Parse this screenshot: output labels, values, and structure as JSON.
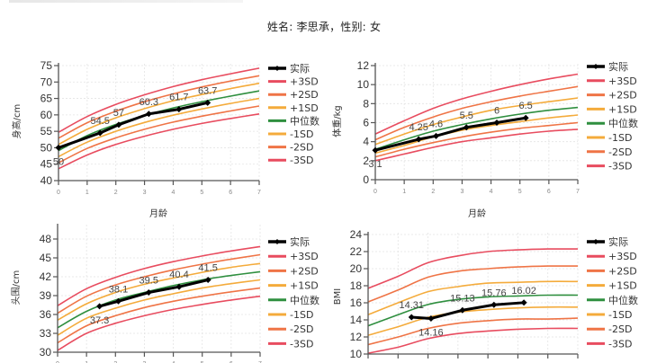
{
  "header": {
    "title": "姓名: 李思承，性别: 女"
  },
  "legend": {
    "items": [
      "实际",
      "+3SD",
      "+2SD",
      "+1SD",
      "中位数",
      "-1SD",
      "-2SD",
      "-3SD"
    ]
  },
  "colors": {
    "实际": "#000000",
    "+3SD": "#e84c5f",
    "+2SD": "#ef7446",
    "+1SD": "#f4ab3b",
    "中位数": "#2f8f3f",
    "-1SD": "#f4ab3b",
    "-2SD": "#ef7446",
    "-3SD": "#e84c5f",
    "grid": "#e4e4e4",
    "axis": "#555555"
  },
  "chart_data": [
    {
      "type": "line",
      "title": "",
      "xlabel": "月龄",
      "ylabel": "身高/cm",
      "xlim": [
        0,
        7
      ],
      "ylim": [
        40,
        75
      ],
      "xticks": [
        0,
        1,
        2,
        3,
        4,
        5,
        6,
        7
      ],
      "yticks": [
        40,
        45,
        50,
        55,
        60,
        65,
        70,
        75
      ],
      "grid": true,
      "legend_position": "right",
      "reference_x": [
        0,
        1,
        2,
        3,
        4,
        5,
        6,
        7
      ],
      "series": [
        {
          "name": "+3SD",
          "values": [
            54.7,
            59.5,
            63.2,
            66.1,
            68.6,
            70.7,
            72.5,
            74.2
          ]
        },
        {
          "name": "+2SD",
          "values": [
            52.9,
            57.6,
            61.1,
            64.0,
            66.4,
            68.5,
            70.3,
            71.9
          ]
        },
        {
          "name": "+1SD",
          "values": [
            51.0,
            55.6,
            59.1,
            61.9,
            64.3,
            66.2,
            68.0,
            69.6
          ]
        },
        {
          "name": "中位数",
          "values": [
            49.1,
            53.7,
            57.1,
            59.8,
            62.1,
            64.0,
            65.7,
            67.3
          ]
        },
        {
          "name": "-1SD",
          "values": [
            47.3,
            51.7,
            55.0,
            57.7,
            59.9,
            61.8,
            63.5,
            65.0
          ]
        },
        {
          "name": "-2SD",
          "values": [
            45.4,
            49.8,
            53.0,
            55.6,
            57.8,
            59.6,
            61.2,
            62.7
          ]
        },
        {
          "name": "-3SD",
          "values": [
            43.6,
            47.8,
            51.0,
            53.5,
            55.6,
            57.4,
            58.9,
            60.3
          ]
        },
        {
          "name": "实际",
          "x": [
            0,
            1.45,
            2.1,
            3.15,
            4.2,
            5.2
          ],
          "values": [
            50,
            54.5,
            57,
            60.3,
            61.7,
            63.7
          ],
          "labels": [
            "50",
            "54.5",
            "57",
            "60.3",
            "61.7",
            "63.7"
          ]
        }
      ]
    },
    {
      "type": "line",
      "title": "",
      "xlabel": "月龄",
      "ylabel": "体重/kg",
      "xlim": [
        0,
        7
      ],
      "ylim": [
        0,
        12
      ],
      "xticks": [
        0,
        1,
        2,
        3,
        4,
        5,
        6,
        7
      ],
      "yticks": [
        0,
        2,
        4,
        6,
        8,
        10,
        12
      ],
      "grid": true,
      "legend_position": "right",
      "reference_x": [
        0,
        1,
        2,
        3,
        4,
        5,
        6,
        7
      ],
      "series": [
        {
          "name": "+3SD",
          "values": [
            4.8,
            6.2,
            7.5,
            8.5,
            9.3,
            10.0,
            10.6,
            11.1
          ]
        },
        {
          "name": "+2SD",
          "values": [
            4.2,
            5.5,
            6.6,
            7.5,
            8.2,
            8.8,
            9.3,
            9.8
          ]
        },
        {
          "name": "+1SD",
          "values": [
            3.7,
            4.8,
            5.8,
            6.6,
            7.3,
            7.8,
            8.2,
            8.6
          ]
        },
        {
          "name": "中位数",
          "values": [
            3.2,
            4.2,
            5.1,
            5.8,
            6.4,
            6.9,
            7.3,
            7.6
          ]
        },
        {
          "name": "-1SD",
          "values": [
            2.8,
            3.6,
            4.5,
            5.2,
            5.7,
            6.1,
            6.5,
            6.8
          ]
        },
        {
          "name": "-2SD",
          "values": [
            2.4,
            3.2,
            3.9,
            4.5,
            5.0,
            5.4,
            5.7,
            6.0
          ]
        },
        {
          "name": "-3SD",
          "values": [
            2.0,
            2.7,
            3.4,
            4.0,
            4.4,
            4.8,
            5.1,
            5.3
          ]
        },
        {
          "name": "实际",
          "x": [
            0,
            1.5,
            2.1,
            3.15,
            4.2,
            5.2
          ],
          "values": [
            3.1,
            4.25,
            4.6,
            5.5,
            6,
            6.5
          ],
          "labels": [
            "3.1",
            "4.25",
            "4.6",
            "5.5",
            "6",
            "6.5"
          ]
        }
      ]
    },
    {
      "type": "line",
      "title": "",
      "xlabel": "",
      "ylabel": "头围/cm",
      "xlim": [
        0,
        7
      ],
      "ylim": [
        30,
        50
      ],
      "xticks": [
        0,
        1,
        2,
        3,
        4,
        5,
        6,
        7
      ],
      "yticks": [
        30,
        33,
        36,
        39,
        42,
        45,
        48
      ],
      "grid": true,
      "legend_position": "right",
      "reference_x": [
        0,
        1,
        2,
        3,
        4,
        5,
        6,
        7
      ],
      "series": [
        {
          "name": "+3SD",
          "values": [
            37.4,
            40.1,
            41.9,
            43.3,
            44.4,
            45.3,
            46.1,
            46.8
          ]
        },
        {
          "name": "+2SD",
          "values": [
            36.2,
            38.9,
            40.7,
            42.0,
            43.1,
            44.0,
            44.8,
            45.5
          ]
        },
        {
          "name": "+1SD",
          "values": [
            35.1,
            37.7,
            39.5,
            40.8,
            41.8,
            42.7,
            43.5,
            44.1
          ]
        },
        {
          "name": "中位数",
          "values": [
            33.9,
            36.5,
            38.3,
            39.5,
            40.6,
            41.5,
            42.2,
            42.8
          ]
        },
        {
          "name": "-1SD",
          "values": [
            32.7,
            35.4,
            37.0,
            38.3,
            39.3,
            40.2,
            40.9,
            41.5
          ]
        },
        {
          "name": "-2SD",
          "values": [
            31.5,
            34.2,
            35.8,
            37.1,
            38.1,
            38.9,
            39.6,
            40.2
          ]
        },
        {
          "name": "-3SD",
          "values": [
            30.3,
            33.0,
            34.6,
            35.8,
            36.8,
            37.6,
            38.3,
            38.9
          ]
        },
        {
          "name": "实际",
          "x": [
            1.45,
            2.1,
            3.15,
            4.2,
            5.2
          ],
          "values": [
            37.3,
            38.1,
            39.5,
            40.4,
            41.5
          ],
          "labels": [
            "37.3",
            "38.1",
            "39.5",
            "40.4",
            "41.5"
          ]
        }
      ]
    },
    {
      "type": "line",
      "title": "",
      "xlabel": "",
      "ylabel": "BMI",
      "xlim": [
        0,
        7
      ],
      "ylim": [
        10,
        24
      ],
      "xticks": [
        0,
        1,
        2,
        3,
        4,
        5,
        6,
        7
      ],
      "yticks": [
        10,
        12,
        14,
        16,
        18,
        20,
        22,
        24
      ],
      "grid": true,
      "legend_position": "right",
      "reference_x": [
        0,
        1,
        2,
        3,
        4,
        5,
        6,
        7
      ],
      "series": [
        {
          "name": "+3SD",
          "values": [
            17.7,
            19.1,
            20.7,
            21.5,
            22.0,
            22.2,
            22.3,
            22.3
          ]
        },
        {
          "name": "+2SD",
          "values": [
            16.1,
            17.5,
            19.0,
            19.7,
            20.0,
            20.2,
            20.3,
            20.3
          ]
        },
        {
          "name": "+1SD",
          "values": [
            14.6,
            16.0,
            17.3,
            17.9,
            18.3,
            18.4,
            18.5,
            18.5
          ]
        },
        {
          "name": "中位数",
          "values": [
            13.3,
            14.6,
            15.8,
            16.4,
            16.7,
            16.8,
            16.9,
            16.9
          ]
        },
        {
          "name": "-1SD",
          "values": [
            12.2,
            13.2,
            14.3,
            14.9,
            15.2,
            15.4,
            15.5,
            15.5
          ]
        },
        {
          "name": "-2SD",
          "values": [
            11.1,
            12.0,
            13.0,
            13.6,
            13.9,
            14.1,
            14.1,
            14.2
          ]
        },
        {
          "name": "-3SD",
          "values": [
            10.1,
            10.8,
            11.8,
            12.4,
            12.7,
            12.9,
            13.0,
            13.0
          ]
        },
        {
          "name": "实际",
          "x": [
            1.45,
            2.1,
            3.15,
            4.2,
            5.2
          ],
          "values": [
            14.31,
            14.16,
            15.13,
            15.76,
            16.02
          ],
          "labels": [
            "14.31",
            "14.16",
            "15.13",
            "15.76",
            "16.02"
          ]
        }
      ]
    }
  ]
}
